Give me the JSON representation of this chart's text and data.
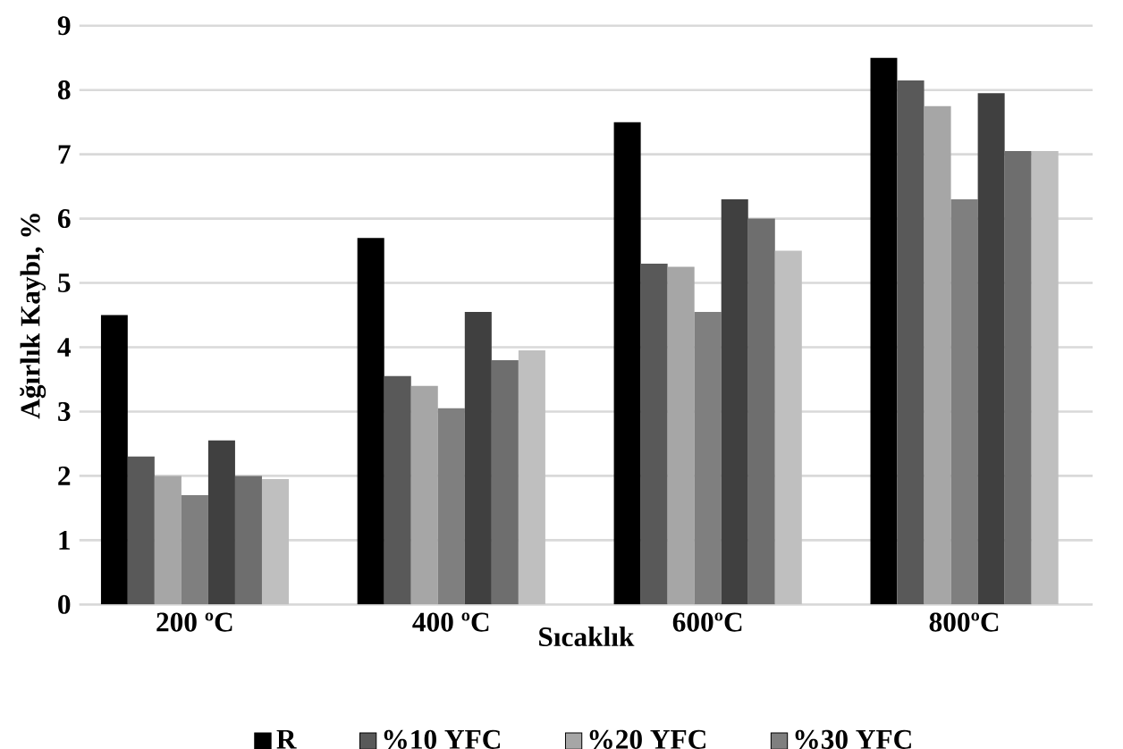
{
  "chart_data": {
    "type": "bar",
    "xlabel": "Sıcaklık",
    "ylabel": "Ağırlık Kaybı, %",
    "categories": [
      "200 ºC",
      "400 ºC",
      "600ºC",
      "800ºC"
    ],
    "series": [
      {
        "name": "R",
        "color": "#000000",
        "values": [
          4.5,
          5.7,
          7.5,
          8.5
        ]
      },
      {
        "name": "%10 YFC",
        "color": "#595959",
        "values": [
          2.3,
          3.55,
          5.3,
          8.15
        ]
      },
      {
        "name": "%20 YFC",
        "color": "#a6a6a6",
        "values": [
          2.0,
          3.4,
          5.25,
          7.75
        ]
      },
      {
        "name": "%30 YFC",
        "color": "#7f7f7f",
        "values": [
          1.7,
          3.05,
          4.55,
          6.3
        ]
      },
      {
        "color": "#404040",
        "values": [
          2.55,
          4.55,
          6.3,
          7.95
        ]
      },
      {
        "color": "#6e6e6e",
        "values": [
          2.0,
          3.8,
          6.0,
          7.05
        ]
      },
      {
        "color": "#bfbfbf",
        "values": [
          1.95,
          3.95,
          5.5,
          7.05
        ]
      }
    ],
    "ylim": [
      0,
      9
    ],
    "yticks": [
      0,
      1,
      2,
      3,
      4,
      5,
      6,
      7,
      8,
      9
    ],
    "grid": "y",
    "legend": "bottom"
  }
}
